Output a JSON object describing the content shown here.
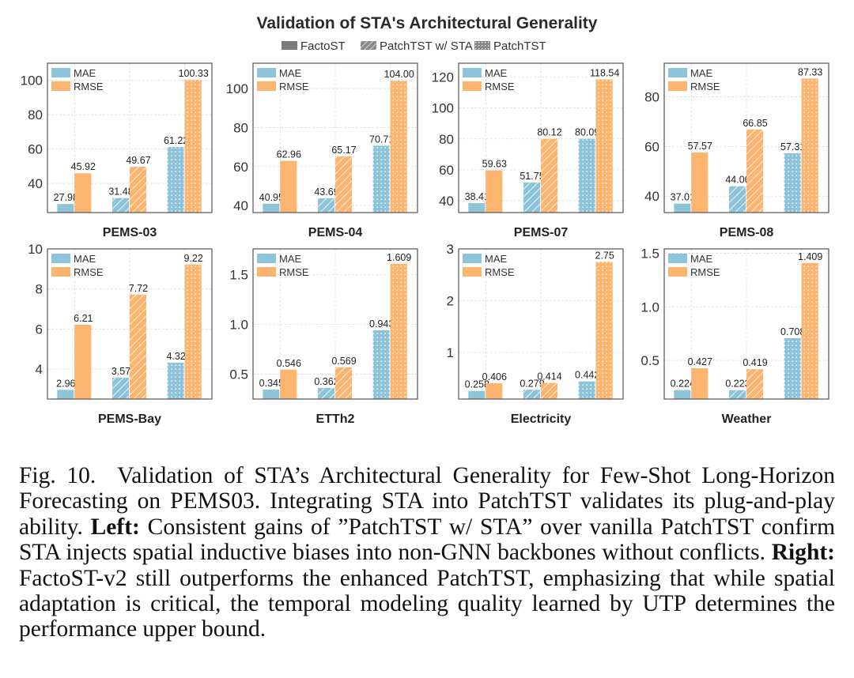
{
  "chart_data": {
    "type": "bar",
    "title": "Validation of STA's Architectural Generality",
    "legend": {
      "placement": "top-center",
      "methods": [
        {
          "name": "FactoST",
          "pattern": "solid"
        },
        {
          "name": "PatchTST w/ STA",
          "pattern": "hatch"
        },
        {
          "name": "PatchTST",
          "pattern": "dots"
        }
      ],
      "metrics": [
        {
          "name": "MAE",
          "color": "#8ec4d9"
        },
        {
          "name": "RMSE",
          "color": "#fdb46e"
        }
      ],
      "metric_legend_placement": "upper-left"
    },
    "categories": [
      "FactoST",
      "PatchTST w/ STA",
      "PatchTST"
    ],
    "grid": true,
    "panels": [
      {
        "title": "PEMS-03",
        "ylim": [
          23,
          110
        ],
        "yticks": [
          40,
          60,
          80,
          100
        ],
        "ytick_labels": [
          "40",
          "60",
          "80",
          "100"
        ],
        "series": [
          {
            "name": "MAE",
            "values": [
              27.98,
              31.48,
              61.22
            ],
            "labels": [
              "27.98",
              "31.48",
              "61.22"
            ]
          },
          {
            "name": "RMSE",
            "values": [
              45.92,
              49.67,
              100.33
            ],
            "labels": [
              "45.92",
              "49.67",
              "100.33"
            ]
          }
        ]
      },
      {
        "title": "PEMS-04",
        "ylim": [
          36.4,
          113
        ],
        "yticks": [
          40,
          60,
          80,
          100
        ],
        "ytick_labels": [
          "40",
          "60",
          "80",
          "100"
        ],
        "series": [
          {
            "name": "MAE",
            "values": [
              40.95,
              43.69,
              70.71
            ],
            "labels": [
              "40.95",
              "43.69",
              "70.71"
            ]
          },
          {
            "name": "RMSE",
            "values": [
              62.96,
              65.17,
              104.0
            ],
            "labels": [
              "62.96",
              "65.17",
              "104.00"
            ]
          }
        ]
      },
      {
        "title": "PEMS-07",
        "ylim": [
          32.3,
          129
        ],
        "yticks": [
          40,
          60,
          80,
          100,
          120
        ],
        "ytick_labels": [
          "40",
          "60",
          "80",
          "100",
          "120"
        ],
        "series": [
          {
            "name": "MAE",
            "values": [
              38.41,
              51.75,
              80.09
            ],
            "labels": [
              "38.41",
              "51.75",
              "80.09"
            ]
          },
          {
            "name": "RMSE",
            "values": [
              59.63,
              80.12,
              118.54
            ],
            "labels": [
              "59.63",
              "80.12",
              "118.54"
            ]
          }
        ]
      },
      {
        "title": "PEMS-08",
        "ylim": [
          33.4,
          93.5
        ],
        "yticks": [
          40,
          60,
          80
        ],
        "ytick_labels": [
          "40",
          "60",
          "80"
        ],
        "series": [
          {
            "name": "MAE",
            "values": [
              37.01,
              44.0,
              57.31
            ],
            "labels": [
              "37.01",
              "44.00",
              "57.31"
            ]
          },
          {
            "name": "RMSE",
            "values": [
              57.57,
              66.85,
              87.33
            ],
            "labels": [
              "57.57",
              "66.85",
              "87.33"
            ]
          }
        ]
      },
      {
        "title": "PEMS-Bay",
        "ylim": [
          2.5,
          10
        ],
        "yticks": [
          4,
          6,
          8,
          10
        ],
        "ytick_labels": [
          "4",
          "6",
          "8",
          "10"
        ],
        "series": [
          {
            "name": "MAE",
            "values": [
              2.96,
              3.57,
              4.32
            ],
            "labels": [
              "2.96",
              "3.57",
              "4.32"
            ]
          },
          {
            "name": "RMSE",
            "values": [
              6.21,
              7.72,
              9.22
            ],
            "labels": [
              "6.21",
              "7.72",
              "9.22"
            ]
          }
        ]
      },
      {
        "title": "ETTh2",
        "ylim": [
          0.25,
          1.76
        ],
        "yticks": [
          0.5,
          1.0,
          1.5
        ],
        "ytick_labels": [
          "0.5",
          "1.0",
          "1.5"
        ],
        "series": [
          {
            "name": "MAE",
            "values": [
              0.345,
              0.362,
              0.943
            ],
            "labels": [
              "0.345",
              "0.362",
              "0.943"
            ]
          },
          {
            "name": "RMSE",
            "values": [
              0.546,
              0.569,
              1.609
            ],
            "labels": [
              "0.546",
              "0.569",
              "1.609"
            ]
          }
        ]
      },
      {
        "title": "Electricity",
        "ylim": [
          0.1,
          3.0
        ],
        "yticks": [
          1,
          2,
          3
        ],
        "ytick_labels": [
          "1",
          "2",
          "3"
        ],
        "series": [
          {
            "name": "MAE",
            "values": [
              0.258,
              0.279,
              0.442
            ],
            "labels": [
              "0.258",
              "0.279",
              "0.442"
            ]
          },
          {
            "name": "RMSE",
            "values": [
              0.406,
              0.414,
              2.75
            ],
            "labels": [
              "0.406",
              "0.414",
              "2.75"
            ]
          }
        ]
      },
      {
        "title": "Weather",
        "ylim": [
          0.14,
          1.54
        ],
        "yticks": [
          0.5,
          1.0,
          1.5
        ],
        "ytick_labels": [
          "0.5",
          "1.0",
          "1.5"
        ],
        "series": [
          {
            "name": "MAE",
            "values": [
              0.224,
              0.223,
              0.708
            ],
            "labels": [
              "0.224",
              "0.223",
              "0.708"
            ]
          },
          {
            "name": "RMSE",
            "values": [
              0.427,
              0.419,
              1.409
            ],
            "labels": [
              "0.427",
              "0.419",
              "1.409"
            ]
          }
        ]
      }
    ]
  },
  "caption": {
    "label": "Fig. 10.",
    "text_1": "Validation of STA’s Architectural Generality for Few-Shot Long-Horizon Forecasting on PEMS03. Integrating STA into PatchTST validates its plug-and-play ability.",
    "bold_1": "Left:",
    "text_2": "Consistent gains of ”PatchTST w/ STA” over vanilla PatchTST confirm STA injects spatial inductive biases into non-GNN backbones without conflicts.",
    "bold_2": "Right:",
    "text_3": "FactoST-v2 still outperforms the enhanced PatchTST, emphasizing that while spatial adaptation is critical, the temporal modeling quality learned by UTP determines the performance upper bound."
  }
}
